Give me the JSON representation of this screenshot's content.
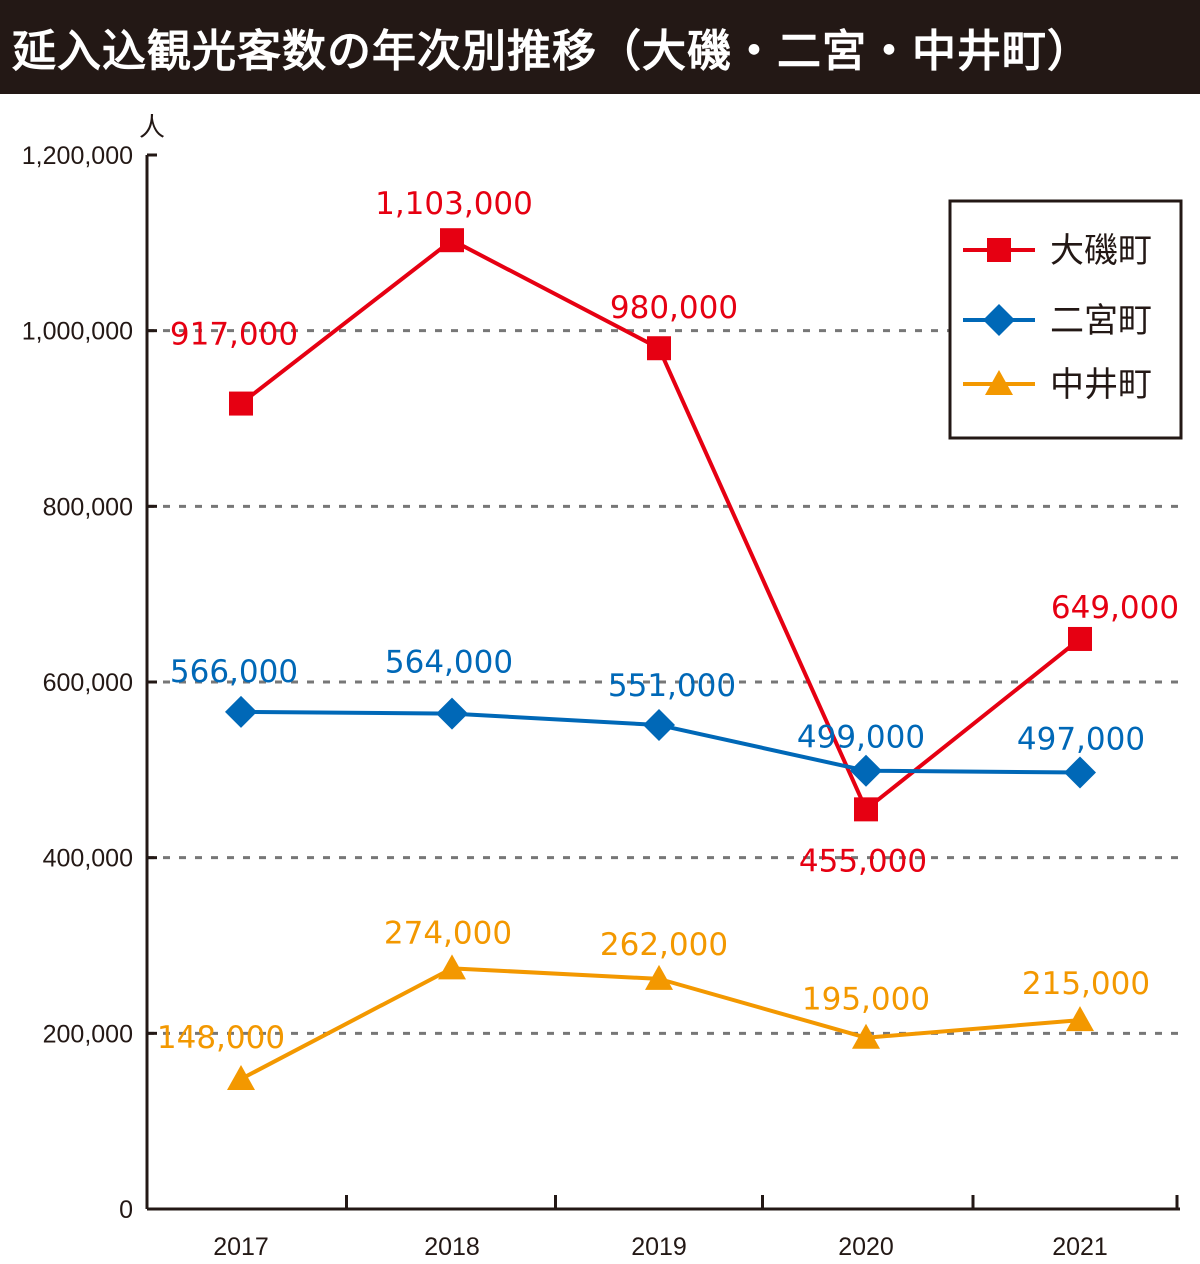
{
  "header": {
    "title": "延入込観光客数の年次別推移（大磯・二宮・中井町）"
  },
  "chart_data": {
    "type": "line",
    "title": "延入込観光客数の年次別推移（大磯・二宮・中井町）",
    "ylabel": "人",
    "xlabel": "",
    "categories": [
      "2017",
      "2018",
      "2019",
      "2020",
      "2021"
    ],
    "ylim": [
      0,
      1200000
    ],
    "yticks": [
      0,
      200000,
      400000,
      600000,
      800000,
      1000000,
      1200000
    ],
    "ytick_labels": [
      "0",
      "200,000",
      "400,000",
      "600,000",
      "800,000",
      "1,000,000",
      "1,200,000"
    ],
    "grid": "horizontal dashed",
    "legend_position": "top-right",
    "series": [
      {
        "name": "大磯町",
        "color": "#e60012",
        "marker": "square",
        "values": [
          917000,
          1103000,
          980000,
          455000,
          649000
        ],
        "labels": [
          "917,000",
          "1,103,000",
          "980,000",
          "455,000",
          "649,000"
        ]
      },
      {
        "name": "二宮町",
        "color": "#0068b7",
        "marker": "diamond",
        "values": [
          566000,
          564000,
          551000,
          499000,
          497000
        ],
        "labels": [
          "566,000",
          "564,000",
          "551,000",
          "499,000",
          "497,000"
        ]
      },
      {
        "name": "中井町",
        "color": "#f39800",
        "marker": "triangle",
        "values": [
          148000,
          274000,
          262000,
          195000,
          215000
        ],
        "labels": [
          "148,000",
          "274,000",
          "262,000",
          "195,000",
          "215,000"
        ]
      }
    ]
  }
}
